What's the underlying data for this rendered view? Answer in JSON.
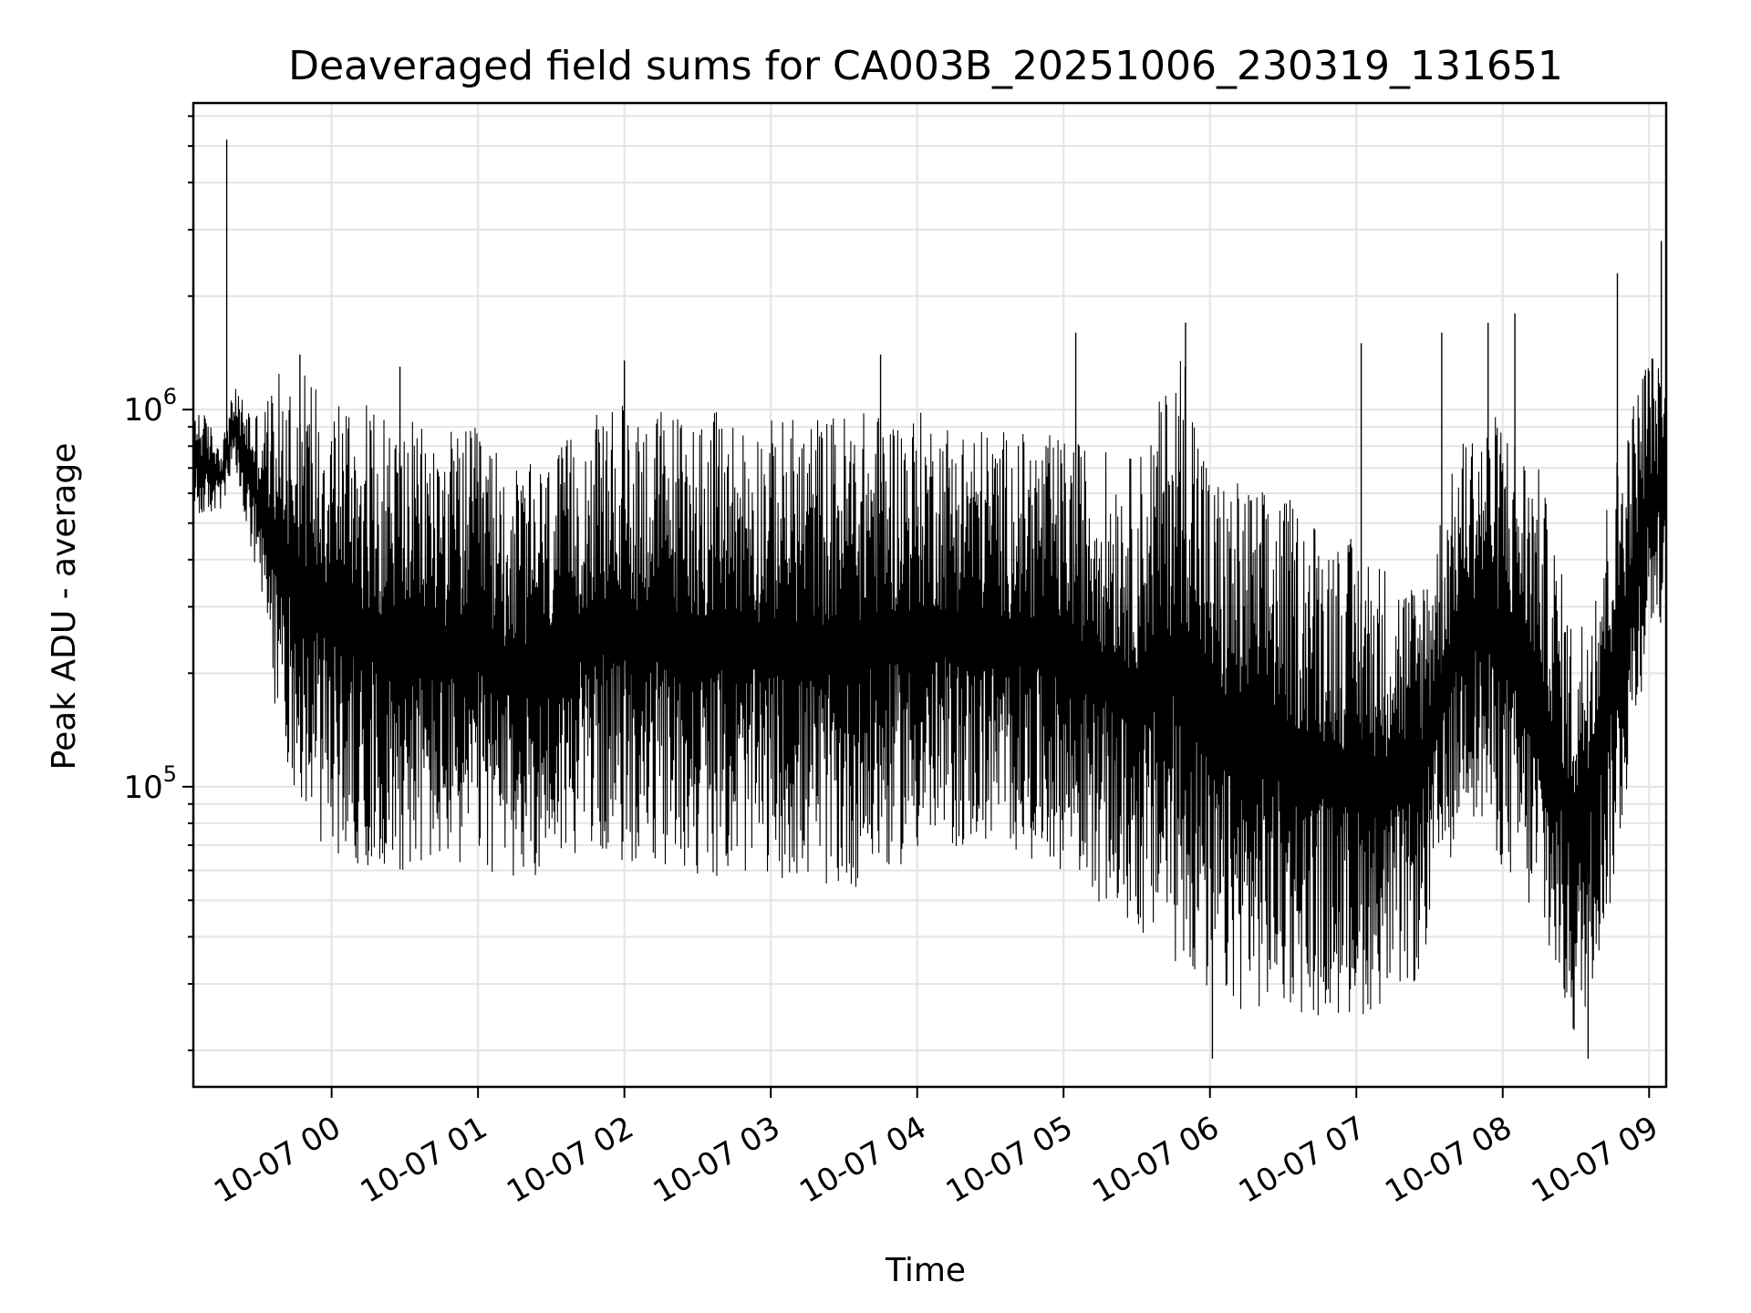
{
  "chart_data": {
    "type": "line",
    "title": "Deaveraged field sums for CA003B_20251006_230319_131651",
    "xlabel": "Time",
    "ylabel": "Peak ADU - average",
    "y_scale": "log",
    "ylim": [
      16000,
      6500000
    ],
    "xlim": [
      "2025-10-06 23:03:19",
      "2025-10-07 09:07:00"
    ],
    "grid": true,
    "x_ticks": [
      {
        "t": "2025-10-07 00:00",
        "label": "10-07 00"
      },
      {
        "t": "2025-10-07 01:00",
        "label": "10-07 01"
      },
      {
        "t": "2025-10-07 02:00",
        "label": "10-07 02"
      },
      {
        "t": "2025-10-07 03:00",
        "label": "10-07 03"
      },
      {
        "t": "2025-10-07 04:00",
        "label": "10-07 04"
      },
      {
        "t": "2025-10-07 05:00",
        "label": "10-07 05"
      },
      {
        "t": "2025-10-07 06:00",
        "label": "10-07 06"
      },
      {
        "t": "2025-10-07 07:00",
        "label": "10-07 07"
      },
      {
        "t": "2025-10-07 08:00",
        "label": "10-07 08"
      },
      {
        "t": "2025-10-07 09:00",
        "label": "10-07 09"
      }
    ],
    "y_ticks": [
      {
        "value": 100000,
        "base": "10",
        "exp": "5"
      },
      {
        "value": 1000000,
        "base": "10",
        "exp": "6"
      }
    ],
    "series": [
      {
        "color": "#000000",
        "envelope": [
          {
            "t": "2025-10-06 23:03",
            "low": 500000,
            "high": 1100000
          },
          {
            "t": "2025-10-06 23:15",
            "low": 540000,
            "high": 820000
          },
          {
            "t": "2025-10-06 23:20",
            "low": 700000,
            "high": 1150000
          },
          {
            "t": "2025-10-06 23:30",
            "low": 320000,
            "high": 1000000
          },
          {
            "t": "2025-10-06 23:40",
            "low": 120000,
            "high": 1300000
          },
          {
            "t": "2025-10-06 23:50",
            "low": 80000,
            "high": 1300000
          },
          {
            "t": "2025-10-07 00:00",
            "low": 65000,
            "high": 1200000
          },
          {
            "t": "2025-10-07 00:20",
            "low": 60000,
            "high": 1000000
          },
          {
            "t": "2025-10-07 00:40",
            "low": 60000,
            "high": 900000
          },
          {
            "t": "2025-10-07 01:00",
            "low": 60000,
            "high": 900000
          },
          {
            "t": "2025-10-07 01:15",
            "low": 55000,
            "high": 700000
          },
          {
            "t": "2025-10-07 01:30",
            "low": 60000,
            "high": 750000
          },
          {
            "t": "2025-10-07 01:45",
            "low": 70000,
            "high": 950000
          },
          {
            "t": "2025-10-07 02:00",
            "low": 62000,
            "high": 1050000
          },
          {
            "t": "2025-10-07 02:30",
            "low": 58000,
            "high": 1000000
          },
          {
            "t": "2025-10-07 03:00",
            "low": 58000,
            "high": 950000
          },
          {
            "t": "2025-10-07 03:30",
            "low": 52000,
            "high": 1000000
          },
          {
            "t": "2025-10-07 04:00",
            "low": 65000,
            "high": 1000000
          },
          {
            "t": "2025-10-07 04:30",
            "low": 70000,
            "high": 900000
          },
          {
            "t": "2025-10-07 05:00",
            "low": 60000,
            "high": 850000
          },
          {
            "t": "2025-10-07 05:30",
            "low": 40000,
            "high": 750000
          },
          {
            "t": "2025-10-07 05:50",
            "low": 32000,
            "high": 1600000
          },
          {
            "t": "2025-10-07 06:00",
            "low": 26000,
            "high": 700000
          },
          {
            "t": "2025-10-07 06:30",
            "low": 25000,
            "high": 600000
          },
          {
            "t": "2025-10-07 07:00",
            "low": 24000,
            "high": 450000
          },
          {
            "t": "2025-10-07 07:25",
            "low": 30000,
            "high": 350000
          },
          {
            "t": "2025-10-07 07:45",
            "low": 90000,
            "high": 900000
          },
          {
            "t": "2025-10-07 08:00",
            "low": 60000,
            "high": 1000000
          },
          {
            "t": "2025-10-07 08:15",
            "low": 40000,
            "high": 700000
          },
          {
            "t": "2025-10-07 08:30",
            "low": 20000,
            "high": 250000
          },
          {
            "t": "2025-10-07 08:45",
            "low": 50000,
            "high": 700000
          },
          {
            "t": "2025-10-07 09:00",
            "low": 250000,
            "high": 1500000
          },
          {
            "t": "2025-10-07 09:07",
            "low": 280000,
            "high": 1200000
          }
        ],
        "spikes": [
          {
            "t": "2025-10-06 23:17",
            "value": 5200000
          },
          {
            "t": "2025-10-06 23:47",
            "value": 1400000
          },
          {
            "t": "2025-10-07 00:28",
            "value": 1300000
          },
          {
            "t": "2025-10-07 02:00",
            "value": 1350000
          },
          {
            "t": "2025-10-07 03:45",
            "value": 1400000
          },
          {
            "t": "2025-10-07 05:05",
            "value": 1600000
          },
          {
            "t": "2025-10-07 05:50",
            "value": 1700000
          },
          {
            "t": "2025-10-07 06:01",
            "value": 19000
          },
          {
            "t": "2025-10-07 07:02",
            "value": 1500000
          },
          {
            "t": "2025-10-07 07:35",
            "value": 1600000
          },
          {
            "t": "2025-10-07 07:54",
            "value": 1700000
          },
          {
            "t": "2025-10-07 08:05",
            "value": 1800000
          },
          {
            "t": "2025-10-07 08:35",
            "value": 19000
          },
          {
            "t": "2025-10-07 08:47",
            "value": 2300000
          },
          {
            "t": "2025-10-07 09:05",
            "value": 2800000
          }
        ]
      }
    ]
  }
}
